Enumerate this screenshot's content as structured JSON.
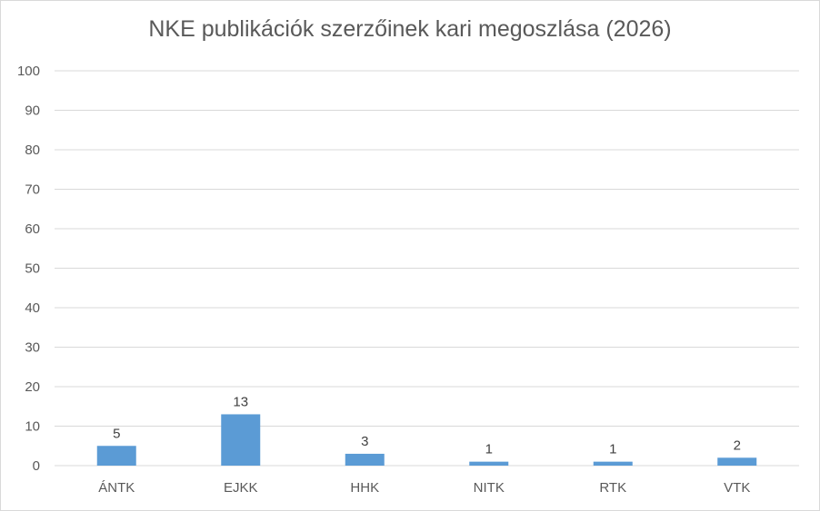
{
  "chart_data": {
    "type": "bar",
    "title": "NKE publikációk szerzőinek kari megoszlása (2026)",
    "categories": [
      "ÁNTK",
      "EJKK",
      "HHK",
      "NITK",
      "RTK",
      "VTK"
    ],
    "values": [
      5,
      13,
      3,
      1,
      1,
      2
    ],
    "data_labels": [
      "5",
      "13",
      "3",
      "1",
      "1",
      "2"
    ],
    "ylim": [
      0,
      100
    ],
    "yticks": [
      0,
      10,
      20,
      30,
      40,
      50,
      60,
      70,
      80,
      90,
      100
    ],
    "xlabel": "",
    "ylabel": "",
    "grid": true,
    "legend": "none",
    "bar_color": "#5b9bd5",
    "grid_color": "#d9d9d9"
  }
}
